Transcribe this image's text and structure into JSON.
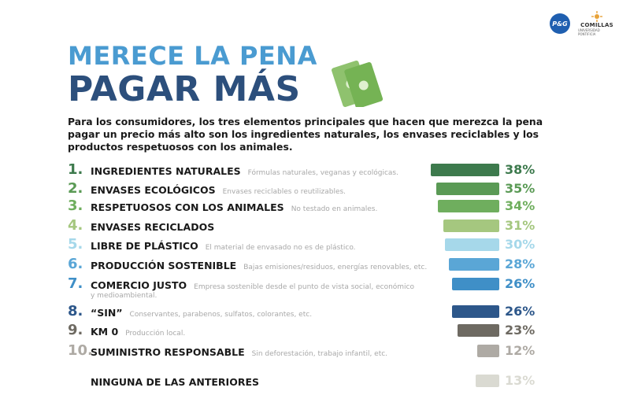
{
  "logos": {
    "pg": "P&G",
    "comillas_name": "COMILLAS",
    "comillas_sub": "UNIVERSIDAD PONTIFICIA"
  },
  "title": {
    "line1": "MERECE LA PENA",
    "line2": "PAGAR MÁS"
  },
  "intro": "Para los consumidores, los tres elementos principales que hacen que merezca la pena pagar un precio más alto son los ingredientes naturales, los envases reciclables y los productos respetuosos con los animales.",
  "chart_data": {
    "type": "bar",
    "orientation": "horizontal",
    "xlim": [
      0,
      40
    ],
    "items": [
      {
        "rank": "1.",
        "label": "INGREDIENTES NATURALES",
        "desc": "Fórmulas naturales, veganas y ecológicas.",
        "desc2": "",
        "value": 38,
        "pct": "38%",
        "color": "#3d7a4d"
      },
      {
        "rank": "2.",
        "label": "ENVASES ECOLÓGICOS",
        "desc": "Envases reciclables o reutilizables.",
        "desc2": "",
        "value": 35,
        "pct": "35%",
        "color": "#5a9a55"
      },
      {
        "rank": "3.",
        "label": "RESPETUOSOS CON LOS ANIMALES",
        "desc": "No testado en animales.",
        "desc2": "",
        "value": 34,
        "pct": "34%",
        "color": "#6fae5e"
      },
      {
        "rank": "4.",
        "label": "ENVASES RECICLADOS",
        "desc": "",
        "desc2": "",
        "value": 31,
        "pct": "31%",
        "color": "#a5c77f"
      },
      {
        "rank": "5.",
        "label": "LIBRE DE PLÁSTICO",
        "desc": "El material de envasado no es de plástico.",
        "desc2": "",
        "value": 30,
        "pct": "30%",
        "color": "#a6d8ea"
      },
      {
        "rank": "6.",
        "label": "PRODUCCIÓN SOSTENIBLE",
        "desc": "Bajas emisiones/residuos, energías renovables, etc.",
        "desc2": "",
        "value": 28,
        "pct": "28%",
        "color": "#5aa6d6"
      },
      {
        "rank": "7.",
        "label": "COMERCIO JUSTO",
        "desc": "Empresa sostenible desde el punto de vista social, económico",
        "desc2": "y medioambiental.",
        "value": 26,
        "pct": "26%",
        "color": "#3f8fc7"
      },
      {
        "rank": "8.",
        "label": "“SIN”",
        "desc": "Conservantes, parabenos, sulfatos, colorantes, etc.",
        "desc2": "",
        "value": 26,
        "pct": "26%",
        "color": "#2d578a"
      },
      {
        "rank": "9.",
        "label": "KM 0",
        "desc": "Producción local.",
        "desc2": "",
        "value": 23,
        "pct": "23%",
        "color": "#6e6a62"
      },
      {
        "rank": "10.",
        "label": "SUMINISTRO RESPONSABLE",
        "desc": "Sin deforestación, trabajo infantil, etc.",
        "desc2": "",
        "value": 12,
        "pct": "12%",
        "color": "#aeaaa4"
      },
      {
        "rank": "",
        "label": "NINGUNA DE LAS ANTERIORES",
        "desc": "",
        "desc2": "",
        "value": 13,
        "pct": "13%",
        "color": "#dadad2"
      }
    ]
  }
}
